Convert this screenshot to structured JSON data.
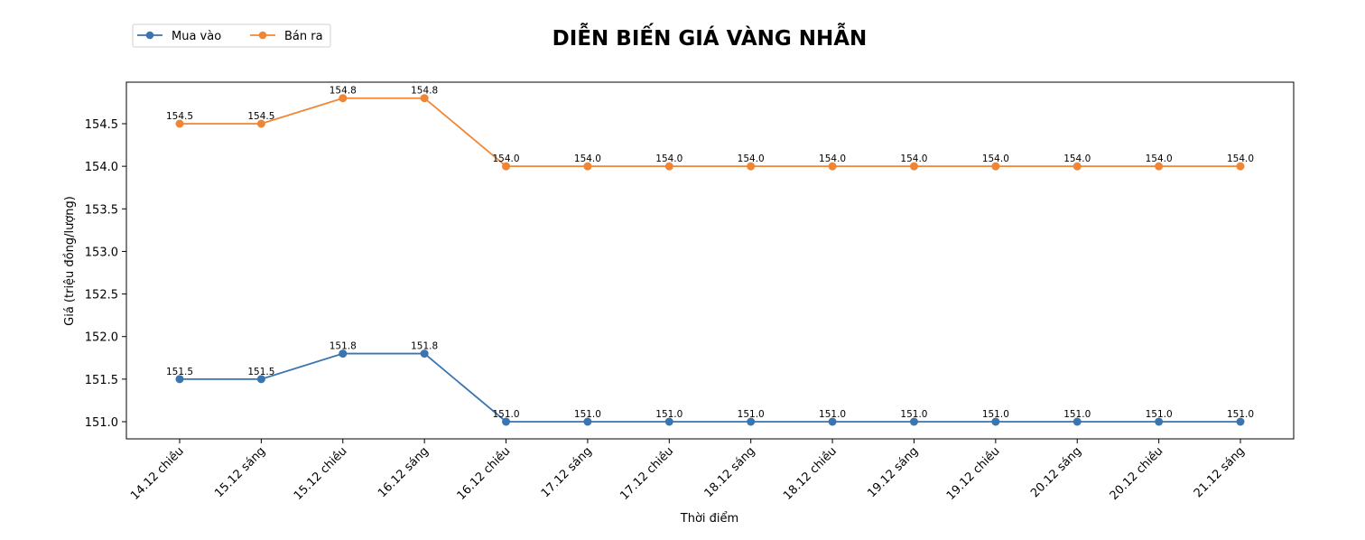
{
  "chart_data": {
    "type": "line",
    "title": "DIỄN BIẾN GIÁ VÀNG NHẪN",
    "xlabel": "Thời điểm",
    "ylabel": "Giá (triệu đồng/lượng)",
    "categories": [
      "14.12 chiều",
      "15.12 sáng",
      "15.12 chiều",
      "16.12 sáng",
      "16.12 chiều",
      "17.12 sáng",
      "17.12 chiều",
      "18.12 sáng",
      "18.12 chiều",
      "19.12 sáng",
      "19.12 chiều",
      "20.12 sáng",
      "20.12 chiều",
      "21.12 sáng"
    ],
    "series": [
      {
        "name": "Mua vào",
        "color": "#3a75af",
        "values": [
          151.5,
          151.5,
          151.8,
          151.8,
          151.0,
          151.0,
          151.0,
          151.0,
          151.0,
          151.0,
          151.0,
          151.0,
          151.0,
          151.0
        ]
      },
      {
        "name": "Bán ra",
        "color": "#ef8636",
        "values": [
          154.5,
          154.5,
          154.8,
          154.8,
          154.0,
          154.0,
          154.0,
          154.0,
          154.0,
          154.0,
          154.0,
          154.0,
          154.0,
          154.0
        ]
      }
    ],
    "yticks": [
      151.0,
      151.5,
      152.0,
      152.5,
      153.0,
      153.5,
      154.0,
      154.5
    ],
    "ylim": [
      150.8,
      154.99
    ],
    "grid": false,
    "legend_position": "upper left (outside, above axes)",
    "data_labels": true,
    "x_tick_rotation": 45
  }
}
